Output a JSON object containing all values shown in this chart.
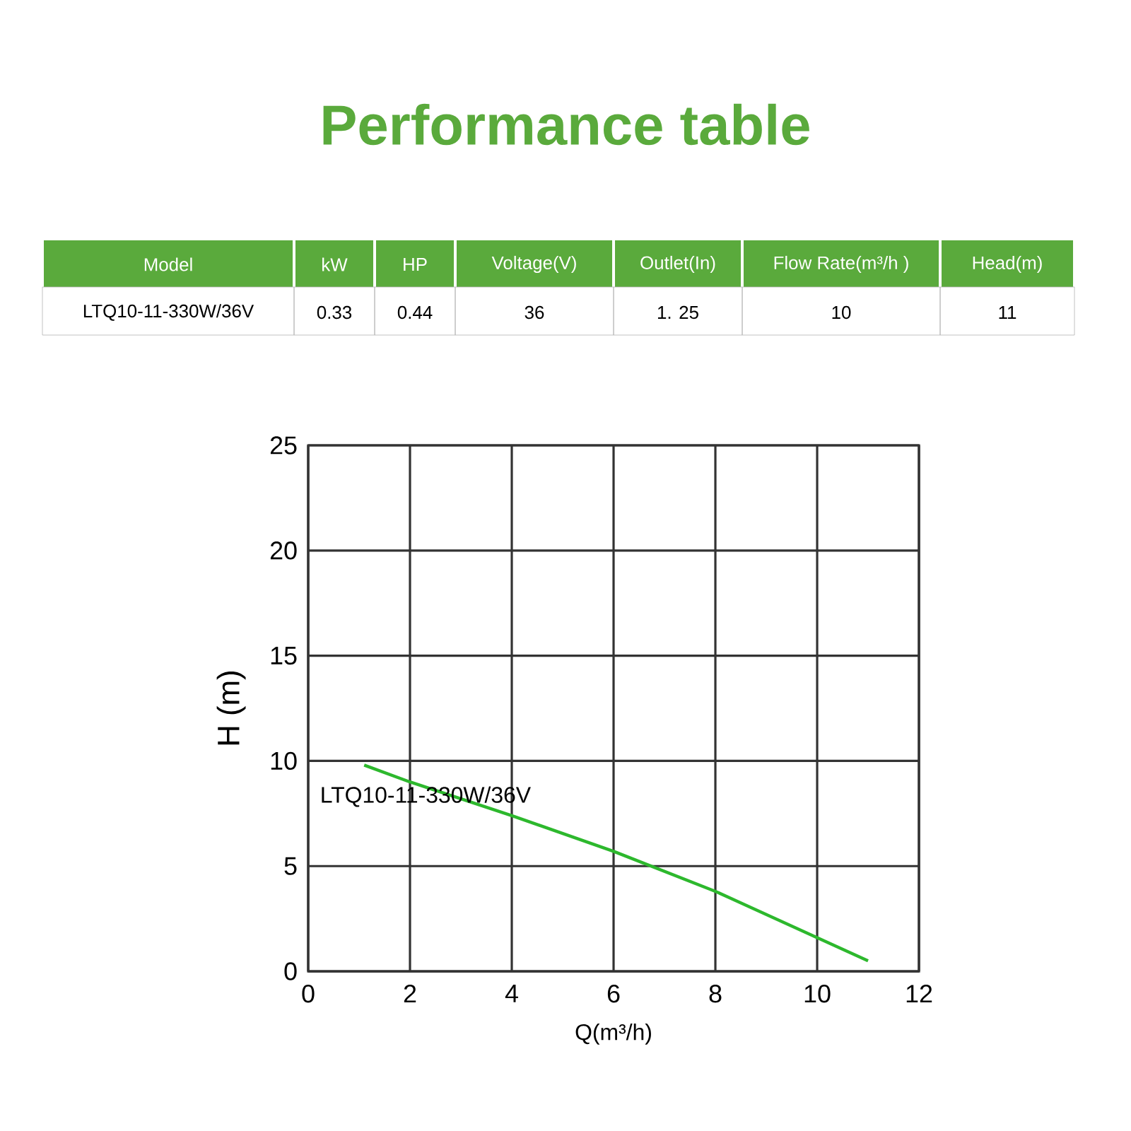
{
  "chart_data": [
    {
      "type": "other",
      "title": "Performance table",
      "color": "#5aaa3c",
      "categories": [
        "Model",
        "kW",
        "HP",
        "Voltage(V)",
        "Outlet(In)",
        "Flow Rate(m³/h )",
        "Head(m)"
      ],
      "annotations": [
        "LTQ10-11-330W/36V",
        "0.33",
        "0.44",
        "36",
        "1. 25",
        "10",
        "11"
      ]
    },
    {
      "type": "line",
      "xlabel": "Q(m³/h)",
      "ylabel": "H (m)",
      "xlim": [
        0,
        12
      ],
      "ylim": [
        0,
        25
      ],
      "xticks": [
        0,
        2,
        4,
        6,
        8,
        10,
        12
      ],
      "yticks": [
        0,
        5,
        10,
        15,
        20,
        25
      ],
      "grid": true,
      "series": [
        {
          "name": "LTQ10-11-330W/36V",
          "color": "#2db82d",
          "x": [
            1.1,
            2,
            4,
            6,
            8,
            10,
            11
          ],
          "values": [
            9.8,
            9.0,
            7.4,
            5.7,
            3.8,
            1.6,
            0.5
          ]
        }
      ]
    }
  ]
}
